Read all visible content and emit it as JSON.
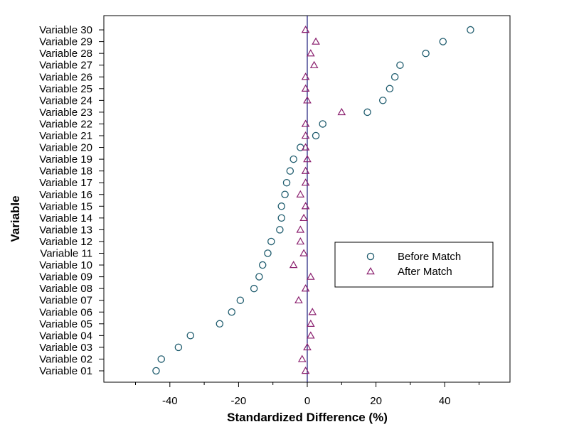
{
  "chart_data": {
    "type": "scatter",
    "xlabel": "Standardized Difference (%)",
    "ylabel": "Variable",
    "xlim": [
      -60,
      60
    ],
    "xticks": [
      -40,
      -20,
      0,
      20,
      40
    ],
    "reference_line_x": 0,
    "grid": false,
    "legend_position": "right-center",
    "categories": [
      "Variable 01",
      "Variable 02",
      "Variable 03",
      "Variable 04",
      "Variable 05",
      "Variable 06",
      "Variable 07",
      "Variable 08",
      "Variable 09",
      "Variable 10",
      "Variable 11",
      "Variable 12",
      "Variable 13",
      "Variable 14",
      "Variable 15",
      "Variable 16",
      "Variable 17",
      "Variable 18",
      "Variable 19",
      "Variable 20",
      "Variable 21",
      "Variable 22",
      "Variable 23",
      "Variable 24",
      "Variable 25",
      "Variable 26",
      "Variable 27",
      "Variable 28",
      "Variable 29",
      "Variable 30"
    ],
    "series": [
      {
        "name": "Before Match",
        "marker": "circle",
        "color": "#1f5c6e",
        "values": [
          -44.0,
          -42.5,
          -37.5,
          -34.0,
          -25.5,
          -22.0,
          -19.5,
          -15.5,
          -14.0,
          -13.0,
          -11.5,
          -10.5,
          -8.0,
          -7.5,
          -7.5,
          -6.5,
          -6.0,
          -5.0,
          -4.0,
          -2.0,
          2.5,
          4.5,
          17.5,
          22.0,
          24.0,
          25.5,
          27.0,
          34.5,
          39.5,
          47.5
        ]
      },
      {
        "name": "After Match",
        "marker": "triangle",
        "color": "#8a1f6e",
        "values": [
          -0.5,
          -1.5,
          0.0,
          1.0,
          1.0,
          1.5,
          -2.5,
          -0.5,
          1.0,
          -4.0,
          -1.0,
          -2.0,
          -2.0,
          -1.0,
          -0.5,
          -2.0,
          -0.5,
          -0.5,
          0.0,
          -0.5,
          -0.5,
          -0.5,
          10.0,
          0.0,
          -0.5,
          -0.5,
          2.0,
          1.0,
          2.5,
          -0.5
        ]
      }
    ]
  },
  "colors": {
    "frame": "#000000",
    "reference_line": "#1a1a7a"
  }
}
